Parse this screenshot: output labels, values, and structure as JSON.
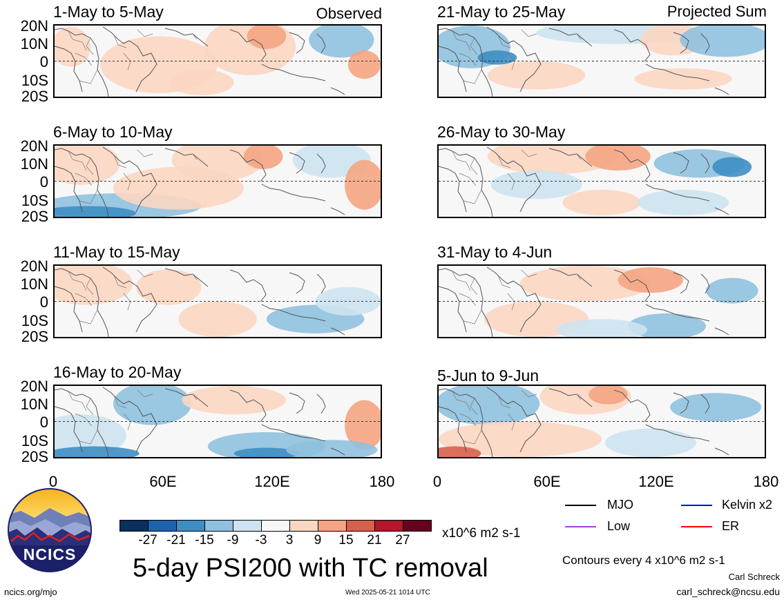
{
  "panels": [
    {
      "title": "1-May to 5-May",
      "label": "Observed"
    },
    {
      "title": "21-May to 25-May",
      "label": "Projected Sum"
    },
    {
      "title": "6-May to 10-May",
      "label": ""
    },
    {
      "title": "26-May to 30-May",
      "label": ""
    },
    {
      "title": "11-May to 15-May",
      "label": ""
    },
    {
      "title": "31-May to 4-Jun",
      "label": ""
    },
    {
      "title": "16-May to 20-May",
      "label": ""
    },
    {
      "title": "5-Jun to 9-Jun",
      "label": ""
    }
  ],
  "lat_labels": [
    "20N",
    "10N",
    "0",
    "10S",
    "20S"
  ],
  "lon_labels": [
    "0",
    "60E",
    "120E",
    "180"
  ],
  "colorbar": {
    "ticks": [
      "-27",
      "-21",
      "-15",
      "-9",
      "-3",
      "3",
      "9",
      "15",
      "21",
      "27"
    ],
    "colors": [
      "#08305e",
      "#1d63ab",
      "#3e8ec4",
      "#8fc1de",
      "#cde3f0",
      "#f7f7f7",
      "#fbd6c2",
      "#f4a482",
      "#d7604d",
      "#b2172b",
      "#67001f"
    ],
    "units": "x10^6 m2 s-1"
  },
  "legend": [
    {
      "name": "MJO",
      "color": "#000000"
    },
    {
      "name": "Kelvin x2",
      "color": "#0000ff"
    },
    {
      "name": "Low",
      "color": "#a040e0"
    },
    {
      "name": "ER",
      "color": "#ff0000"
    }
  ],
  "main_title": "5-day PSI200 with TC removal",
  "contour_note": "Contours every 4 x10^6 m2 s-1",
  "author": "Carl Schreck",
  "email": "carl_schreck@ncsu.edu",
  "site": "ncics.org/mjo",
  "timestamp": "Wed 2025-05-21 1014 UTC",
  "logo_text": "NCICS"
}
